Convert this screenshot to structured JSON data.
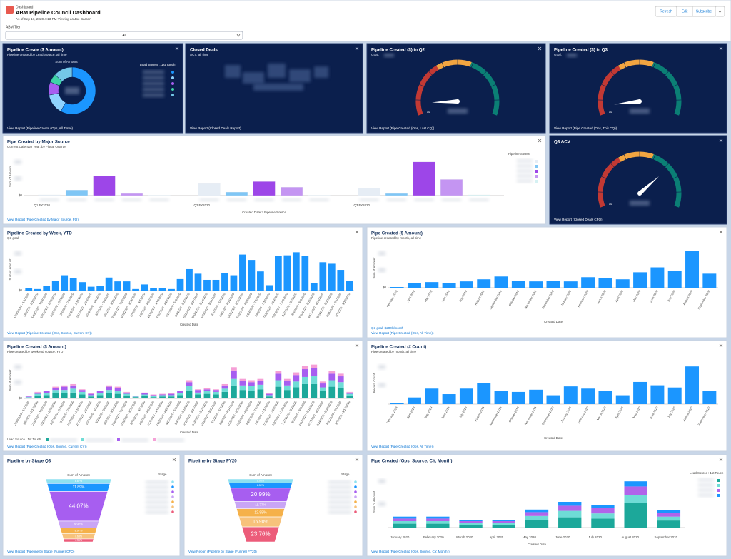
{
  "header": {
    "app": "Dashboard",
    "title": "ABM Pipeline Council Dashboard",
    "subtitle": "As of Sep 17, 2020 4:13 PM Viewing as Joe Carson",
    "buttons": [
      "Refresh",
      "Edit",
      "Subscribe"
    ]
  },
  "filter": {
    "label": "ABM Tier",
    "value": "All"
  },
  "widgets": [
    {
      "type": "donut",
      "title": "Pipeline Create ($ Amount)",
      "subtitle": "Pipeline created by Lead Source, all time",
      "measure": "Sum of Amount",
      "legend_title": "Lead Source : 1st Touch",
      "values": [
        58,
        14,
        9,
        6,
        13
      ],
      "colors": [
        "#1b96ff",
        "#8fd3ff",
        "#a75ef0",
        "#3fd4a8",
        "#74c7e8"
      ],
      "footer": "View Report (Pipeline Create (Ops, All Time))"
    },
    {
      "type": "metric",
      "title": "Closed Deals",
      "subtitle": "ACV, all time",
      "footer": "View Report (Closed Deals Report)"
    },
    {
      "type": "gauge",
      "title": "Pipeline Created ($) in Q2",
      "subtitle": "Goal:",
      "range": [
        0,
        100
      ],
      "value": 8,
      "min_label": "$0",
      "bands": [
        {
          "value": 36,
          "color": "#c23934"
        },
        {
          "value": 59,
          "color": "#f2a541"
        },
        {
          "value": 100,
          "color": "#0b7f75"
        }
      ],
      "footer": "View Report (Pipe Created (Ops, Last CQ))"
    },
    {
      "type": "gauge",
      "title": "Pipeline Created ($) in Q3",
      "subtitle": "Goal:",
      "range": [
        0,
        100
      ],
      "value": 6,
      "min_label": "$0",
      "bands": [
        {
          "value": 36,
          "color": "#c23934"
        },
        {
          "value": 59,
          "color": "#f2a541"
        },
        {
          "value": 100,
          "color": "#0b7f75"
        }
      ],
      "footer": "View Report (Pipe Created (Ops, This CQ))"
    },
    {
      "type": "bar",
      "stacked": false,
      "title": "Pipe Created by Major Source",
      "subtitle": "Current Calendar Year, by Fiscal Quarter",
      "y_label": "Sum of Amount",
      "x_label": "Created Date > Pipeline Source",
      "legend_title": "Pipeline Source",
      "categories": [
        "Q1 FY2020",
        "Q2 FY2020",
        "Q3 FY2020"
      ],
      "series": [
        {
          "color": "#e6edf5",
          "values": [
            1,
            17,
            11
          ]
        },
        {
          "color": "#7fc6f5",
          "values": [
            8,
            5,
            3
          ]
        },
        {
          "color": "#9d46e8",
          "values": [
            28,
            20,
            48
          ]
        },
        {
          "color": "#c495f2",
          "values": [
            3,
            12,
            23
          ]
        },
        {
          "color": "#d5f1f3",
          "values": [
            0.5,
            0.5,
            1
          ]
        }
      ],
      "ylim": [
        0,
        55
      ],
      "yticks": [
        {
          "value": 0,
          "label": "$0"
        }
      ],
      "footer": "View Report (Pipe Created by Major Source, FQ)"
    },
    {
      "type": "gauge",
      "title": "Q3 ACV",
      "range": [
        0,
        100
      ],
      "value": 72,
      "min_label": "$0",
      "bands": [
        {
          "value": 36,
          "color": "#c23934"
        },
        {
          "value": 59,
          "color": "#f2a541"
        },
        {
          "value": 100,
          "color": "#0b7f75"
        }
      ],
      "footer": "View Report (Closed Deals CFQ)"
    },
    {
      "type": "bar",
      "stacked": false,
      "title": "Pipeline Created by Week, YTD",
      "subtitle": "Q3 goal:",
      "y_label": "Sum of Amount",
      "x_label": "Created Date",
      "categories": [
        "12/30/2019 - 1/5/2020",
        "1/6/2020 - 1/12/2020",
        "1/13/2020 - 1/19/2020",
        "1/20/2020 - 1/26/2020",
        "1/27/2020 - 2/2/2020",
        "2/3/2020 - 2/9/2020",
        "2/10/2020 - 2/16/2020",
        "2/17/2020 - 2/23/2020",
        "2/24/2020 - 3/1/2020",
        "3/2/2020 - 3/8/2020",
        "3/9/2020 - 3/15/2020",
        "3/16/2020 - 3/22/2020",
        "3/23/2020 - 3/29/2020",
        "3/30/2020 - 4/5/2020",
        "4/6/2020 - 4/12/2020",
        "4/13/2020 - 4/19/2020",
        "4/20/2020 - 4/26/2020",
        "4/27/2020 - 5/3/2020",
        "5/4/2020 - 5/10/2020",
        "5/11/2020 - 5/17/2020",
        "5/18/2020 - 5/24/2020",
        "5/25/2020 - 5/31/2020",
        "6/1/2020 - 6/7/2020",
        "6/8/2020 - 6/14/2020",
        "6/15/2020 - 6/21/2020",
        "6/22/2020 - 6/28/2020",
        "6/29/2020 - 7/5/2020",
        "7/6/2020 - 7/12/2020",
        "7/13/2020 - 7/19/2020",
        "7/20/2020 - 7/26/2020",
        "7/27/2020 - 8/2/2020",
        "8/3/2020 - 8/9/2020",
        "8/10/2020 - 8/16/2020",
        "8/17/2020 - 8/23/2020",
        "8/24/2020 - 8/30/2020",
        "8/31/2020 - 9/6/2020",
        "9/7/2020 - 9/13/2020"
      ],
      "series": [
        {
          "color": "#1b96ff",
          "values": [
            3,
            2,
            6,
            13,
            20,
            16,
            11,
            5,
            6,
            17,
            12,
            12,
            2,
            8,
            3,
            3,
            2,
            15,
            28,
            22,
            14,
            14,
            23,
            20,
            47,
            40,
            25,
            7,
            45,
            46,
            50,
            45,
            10,
            37,
            35,
            27,
            13
          ]
        }
      ],
      "ylim": [
        0,
        55
      ],
      "yticks": [
        {
          "value": 0,
          "label": "$0"
        }
      ],
      "footer": "View Report (Pipeline Created (Ops, Source, Current CY))"
    },
    {
      "type": "bar",
      "stacked": false,
      "title": "Pipe Created ($ Amount)",
      "subtitle": "Pipeline created by month, all time",
      "y_label": "Sum of Amount",
      "x_label": "Created Date",
      "note": "Q3 goal: $200k/month",
      "categories": [
        "February 2019",
        "April 2019",
        "May 2019",
        "June 2019",
        "July 2019",
        "August 2019",
        "September 2019",
        "October 2019",
        "November 2019",
        "December 2019",
        "January 2020",
        "February 2020",
        "March 2020",
        "April 2020",
        "May 2020",
        "June 2020",
        "July 2020",
        "August 2020",
        "September 2020"
      ],
      "series": [
        {
          "color": "#1b96ff",
          "values": [
            1,
            7,
            8,
            7,
            9,
            12,
            16,
            10,
            9,
            10,
            9,
            15,
            14,
            12,
            22,
            29,
            24,
            52,
            20
          ]
        }
      ],
      "ylim": [
        0,
        56
      ],
      "yticks": [
        {
          "value": 0,
          "label": "$0"
        }
      ],
      "footer": "View Report (Pipe Created (Ops, All Time))"
    },
    {
      "type": "bar",
      "stacked": true,
      "title": "Pipeline Created ($ Amount)",
      "subtitle": "Pipe created by weekend source, YTD",
      "y_label": "Sum of Amount",
      "x_label": "Created Date",
      "legend_title": "Lead Source : 1st Touch",
      "legend_position": "bottom",
      "categories": [
        "12/30/2019 - 1/5/2020",
        "1/6/2020 - 1/12/2020",
        "1/13/2020 - 1/19/2020",
        "1/20/2020 - 1/26/2020",
        "1/27/2020 - 2/2/2020",
        "2/3/2020 - 2/9/2020",
        "2/10/2020 - 2/16/2020",
        "2/17/2020 - 2/23/2020",
        "2/24/2020 - 3/1/2020",
        "3/2/2020 - 3/8/2020",
        "3/9/2020 - 3/15/2020",
        "3/16/2020 - 3/22/2020",
        "3/23/2020 - 3/29/2020",
        "3/30/2020 - 4/5/2020",
        "4/6/2020 - 4/12/2020",
        "4/13/2020 - 4/19/2020",
        "4/20/2020 - 4/26/2020",
        "4/27/2020 - 5/3/2020",
        "5/4/2020 - 5/10/2020",
        "5/11/2020 - 5/17/2020",
        "5/18/2020 - 5/24/2020",
        "5/25/2020 - 5/31/2020",
        "6/1/2020 - 6/7/2020",
        "6/8/2020 - 6/14/2020",
        "6/15/2020 - 6/21/2020",
        "6/22/2020 - 6/28/2020",
        "6/29/2020 - 7/5/2020",
        "7/6/2020 - 7/12/2020",
        "7/13/2020 - 7/19/2020",
        "7/20/2020 - 7/26/2020",
        "7/27/2020 - 8/2/2020",
        "8/3/2020 - 8/9/2020",
        "8/10/2020 - 8/16/2020",
        "8/17/2020 - 8/23/2020",
        "8/24/2020 - 8/30/2020",
        "8/31/2020 - 9/6/2020",
        "9/7/2020 - 9/13/2020"
      ],
      "series": [
        {
          "color": "#1ca89a",
          "values": [
            1,
            4,
            5,
            8,
            8,
            9,
            6,
            3,
            5,
            8,
            7,
            4,
            2,
            4,
            2,
            3,
            3,
            5,
            12,
            6,
            7,
            6,
            10,
            20,
            13,
            12,
            14,
            3,
            18,
            13,
            17,
            22,
            22,
            11,
            18,
            16,
            4
          ]
        },
        {
          "color": "#6fdcd6",
          "values": [
            1,
            3,
            3,
            5,
            5,
            6,
            4,
            2,
            3,
            5,
            5,
            3,
            1,
            2,
            2,
            2,
            2,
            3,
            7,
            3,
            4,
            4,
            5,
            10,
            7,
            7,
            7,
            2,
            10,
            7,
            9,
            11,
            12,
            6,
            10,
            9,
            3
          ]
        },
        {
          "color": "#a75ef0",
          "values": [
            1,
            2,
            3,
            3,
            5,
            5,
            3,
            2,
            3,
            5,
            4,
            2,
            1,
            2,
            1,
            1,
            2,
            3,
            6,
            4,
            3,
            3,
            5,
            13,
            7,
            6,
            6,
            2,
            10,
            7,
            10,
            12,
            13,
            6,
            10,
            9,
            2
          ]
        },
        {
          "color": "#f59fd6",
          "values": [
            0,
            1,
            1,
            2,
            2,
            2,
            1,
            1,
            1,
            2,
            2,
            1,
            0,
            1,
            1,
            1,
            1,
            1,
            3,
            1,
            2,
            1,
            2,
            5,
            3,
            3,
            3,
            1,
            4,
            3,
            4,
            5,
            5,
            3,
            4,
            4,
            1
          ]
        }
      ],
      "ylim": [
        0,
        56
      ],
      "yticks": [
        {
          "value": 0,
          "label": "$0"
        }
      ],
      "footer": "View Report (Pipe Created (Ops, Source, Current CY))"
    },
    {
      "type": "bar",
      "stacked": false,
      "title": "Pipeline Created (# Count)",
      "subtitle": "Pipe created by month, all time",
      "y_label": "Record Count",
      "x_label": "Created Date",
      "categories": [
        "February 2019",
        "April 2019",
        "May 2019",
        "June 2019",
        "July 2019",
        "August 2019",
        "September 2019",
        "October 2019",
        "November 2019",
        "December 2019",
        "January 2020",
        "February 2020",
        "March 2020",
        "April 2020",
        "May 2020",
        "June 2020",
        "July 2020",
        "August 2020",
        "September 2020"
      ],
      "series": [
        {
          "color": "#1b96ff",
          "values": [
            1,
            6,
            14,
            9,
            14,
            19,
            12,
            11,
            13,
            8,
            16,
            14,
            12,
            8,
            20,
            17,
            15,
            34,
            12
          ]
        }
      ],
      "ylim": [
        0,
        38
      ],
      "footer": "View Report (Pipe Created (Ops, All Time))"
    },
    {
      "type": "funnel",
      "title": "Pipeline by Stage Q3",
      "measure": "Sum of Amount",
      "legend_title": "Stage",
      "values": [
        6.67,
        11.89,
        44.07,
        9.97,
        8.97,
        7.63,
        4.36
      ],
      "value_labels": [
        "6.67%",
        "11.89%",
        "44.07%",
        "9.97%",
        "8.97%",
        "7.63%",
        "4.36%"
      ],
      "colors": [
        "#8fe1f0",
        "#1b96ff",
        "#a75ef0",
        "#c9a5f5",
        "#f5b14a",
        "#f7c27b",
        "#ec5c7a"
      ],
      "footer": "View Report (Pipeline by Stage (Funnel) CFQ)"
    },
    {
      "type": "funnel",
      "title": "Pipeline by Stage FY20",
      "measure": "Sum of Amount",
      "legend_title": "Stage",
      "values": [
        6.03,
        8.52,
        20.99,
        11.77,
        12.95,
        15.98,
        23.76
      ],
      "value_labels": [
        "6.03%",
        "8.52%",
        "20.99%",
        "11.77%",
        "12.95%",
        "15.98%",
        "23.76%"
      ],
      "colors": [
        "#8fe1f0",
        "#1b96ff",
        "#a75ef0",
        "#c9a5f5",
        "#f5b14a",
        "#f7c27b",
        "#ec5c7a"
      ],
      "footer": "View Report (Pipeline by Stage (Funnel) FY20)"
    },
    {
      "type": "bar",
      "stacked": true,
      "title": "Pipe Created (Ops, Source, CY, Month)",
      "y_label": "Sum of Amount",
      "x_label": "Created Date",
      "legend_title": "Lead Source : 1st Touch",
      "categories": [
        "January 2020",
        "February 2020",
        "March 2020",
        "April 2020",
        "May 2020",
        "June 2020",
        "July 2020",
        "August 2020",
        "September 2020"
      ],
      "series": [
        {
          "color": "#1ca89a",
          "values": [
            6,
            6,
            4,
            4,
            12,
            16,
            14,
            38,
            11
          ]
        },
        {
          "color": "#6fdcd6",
          "values": [
            4,
            4,
            3,
            3,
            6,
            10,
            8,
            12,
            6
          ]
        },
        {
          "color": "#b164ea",
          "values": [
            4,
            4,
            3,
            3,
            6,
            8,
            8,
            14,
            6
          ]
        },
        {
          "color": "#1b96ff",
          "values": [
            3,
            3,
            2,
            2,
            4,
            6,
            5,
            8,
            4
          ]
        }
      ],
      "ylim": [
        0,
        80
      ],
      "footer": "View Report (Pipe Created (Ops, Source, CY, Month))"
    }
  ]
}
